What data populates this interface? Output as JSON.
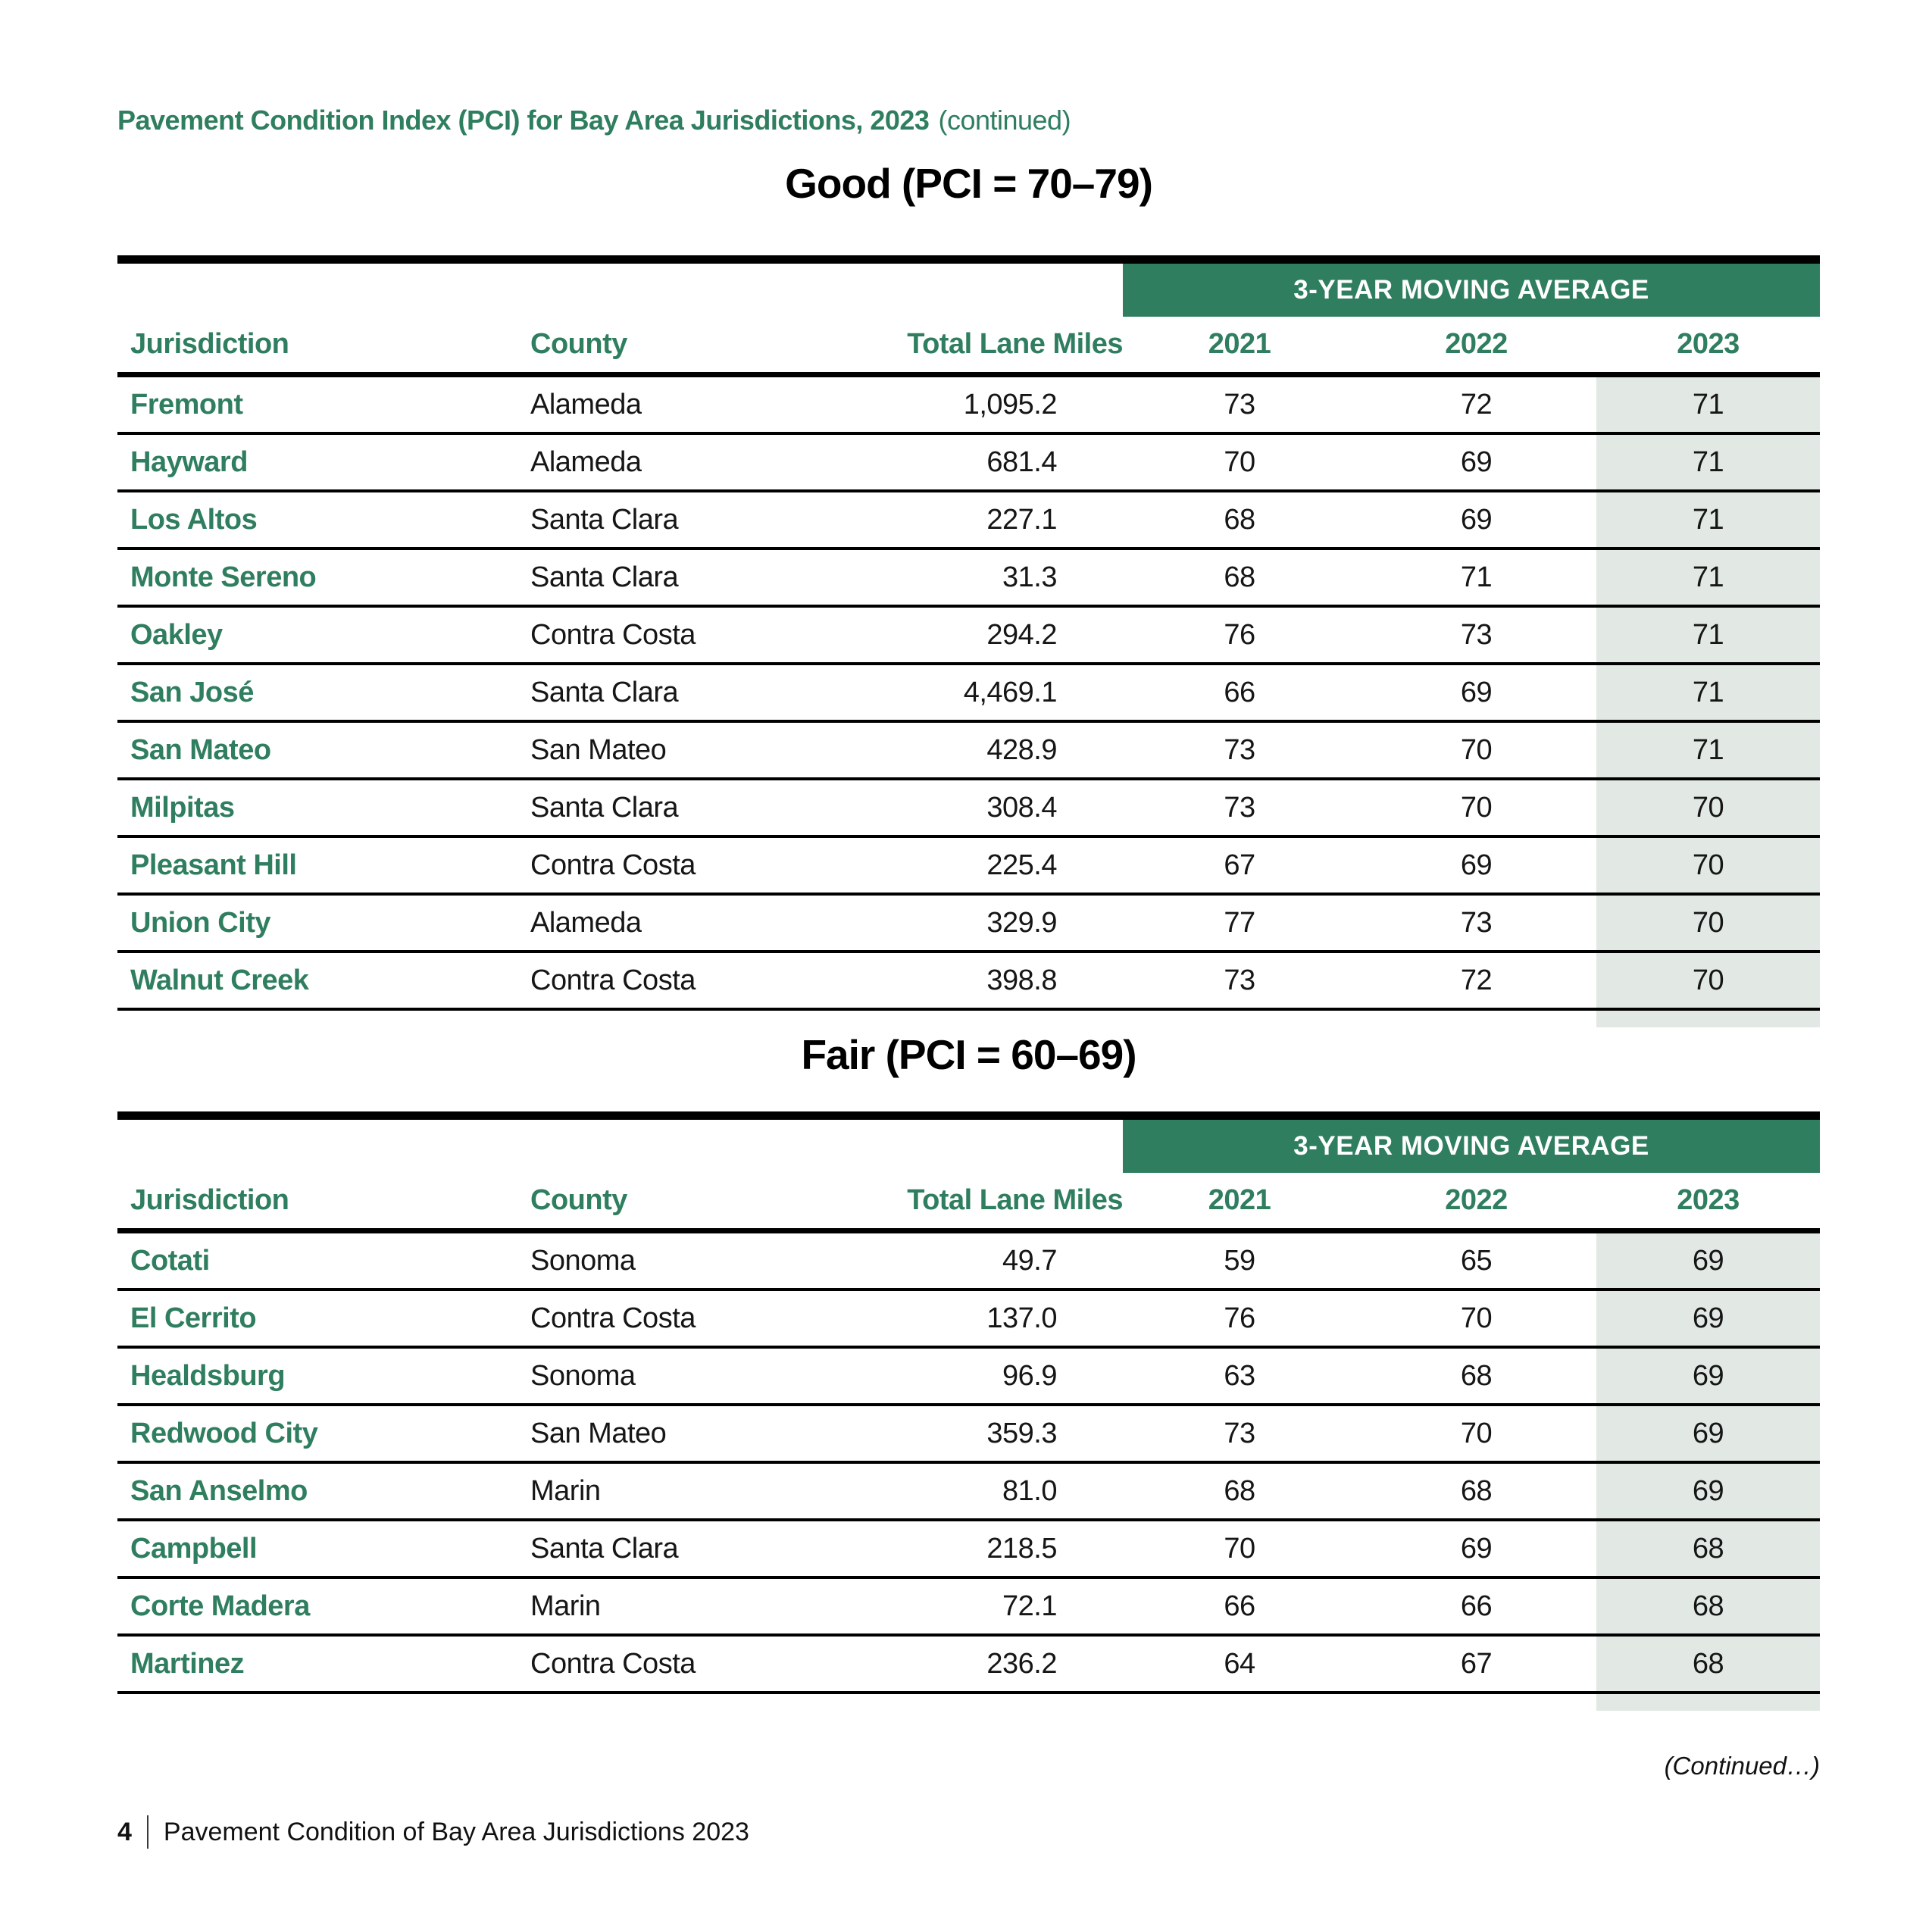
{
  "page_header": {
    "title": "Pavement Condition Index (PCI) for Bay Area Jurisdictions, 2023",
    "suffix": "(continued)"
  },
  "tables": [
    {
      "title": "Good (PCI = 70–79)",
      "banner": "3-YEAR MOVING AVERAGE",
      "columns": [
        "Jurisdiction",
        "County",
        "Total Lane Miles",
        "2021",
        "2022",
        "2023"
      ],
      "rows": [
        [
          "Fremont",
          "Alameda",
          "1,095.2",
          "73",
          "72",
          "71"
        ],
        [
          "Hayward",
          "Alameda",
          "681.4",
          "70",
          "69",
          "71"
        ],
        [
          "Los Altos",
          "Santa Clara",
          "227.1",
          "68",
          "69",
          "71"
        ],
        [
          "Monte Sereno",
          "Santa Clara",
          "31.3",
          "68",
          "71",
          "71"
        ],
        [
          "Oakley",
          "Contra Costa",
          "294.2",
          "76",
          "73",
          "71"
        ],
        [
          "San José",
          "Santa Clara",
          "4,469.1",
          "66",
          "69",
          "71"
        ],
        [
          "San Mateo",
          "San Mateo",
          "428.9",
          "73",
          "70",
          "71"
        ],
        [
          "Milpitas",
          "Santa Clara",
          "308.4",
          "73",
          "70",
          "70"
        ],
        [
          "Pleasant Hill",
          "Contra Costa",
          "225.4",
          "67",
          "69",
          "70"
        ],
        [
          "Union City",
          "Alameda",
          "329.9",
          "77",
          "73",
          "70"
        ],
        [
          "Walnut Creek",
          "Contra Costa",
          "398.8",
          "73",
          "72",
          "70"
        ]
      ]
    },
    {
      "title": "Fair (PCI = 60–69)",
      "banner": "3-YEAR MOVING AVERAGE",
      "columns": [
        "Jurisdiction",
        "County",
        "Total Lane Miles",
        "2021",
        "2022",
        "2023"
      ],
      "rows": [
        [
          "Cotati",
          "Sonoma",
          "49.7",
          "59",
          "65",
          "69"
        ],
        [
          "El Cerrito",
          "Contra Costa",
          "137.0",
          "76",
          "70",
          "69"
        ],
        [
          "Healdsburg",
          "Sonoma",
          "96.9",
          "63",
          "68",
          "69"
        ],
        [
          "Redwood City",
          "San Mateo",
          "359.3",
          "73",
          "70",
          "69"
        ],
        [
          "San Anselmo",
          "Marin",
          "81.0",
          "68",
          "68",
          "69"
        ],
        [
          "Campbell",
          "Santa Clara",
          "218.5",
          "70",
          "69",
          "68"
        ],
        [
          "Corte Madera",
          "Marin",
          "72.1",
          "66",
          "66",
          "68"
        ],
        [
          "Martinez",
          "Contra Costa",
          "236.2",
          "64",
          "67",
          "68"
        ]
      ]
    }
  ],
  "continued_note": "(Continued…)",
  "footer": {
    "page_number": "4",
    "text": "Pavement Condition of Bay Area Jurisdictions 2023"
  },
  "colors": {
    "green": "#2F7E5F",
    "shaded_column": "#E2E9E4",
    "border_black": "#000000"
  }
}
